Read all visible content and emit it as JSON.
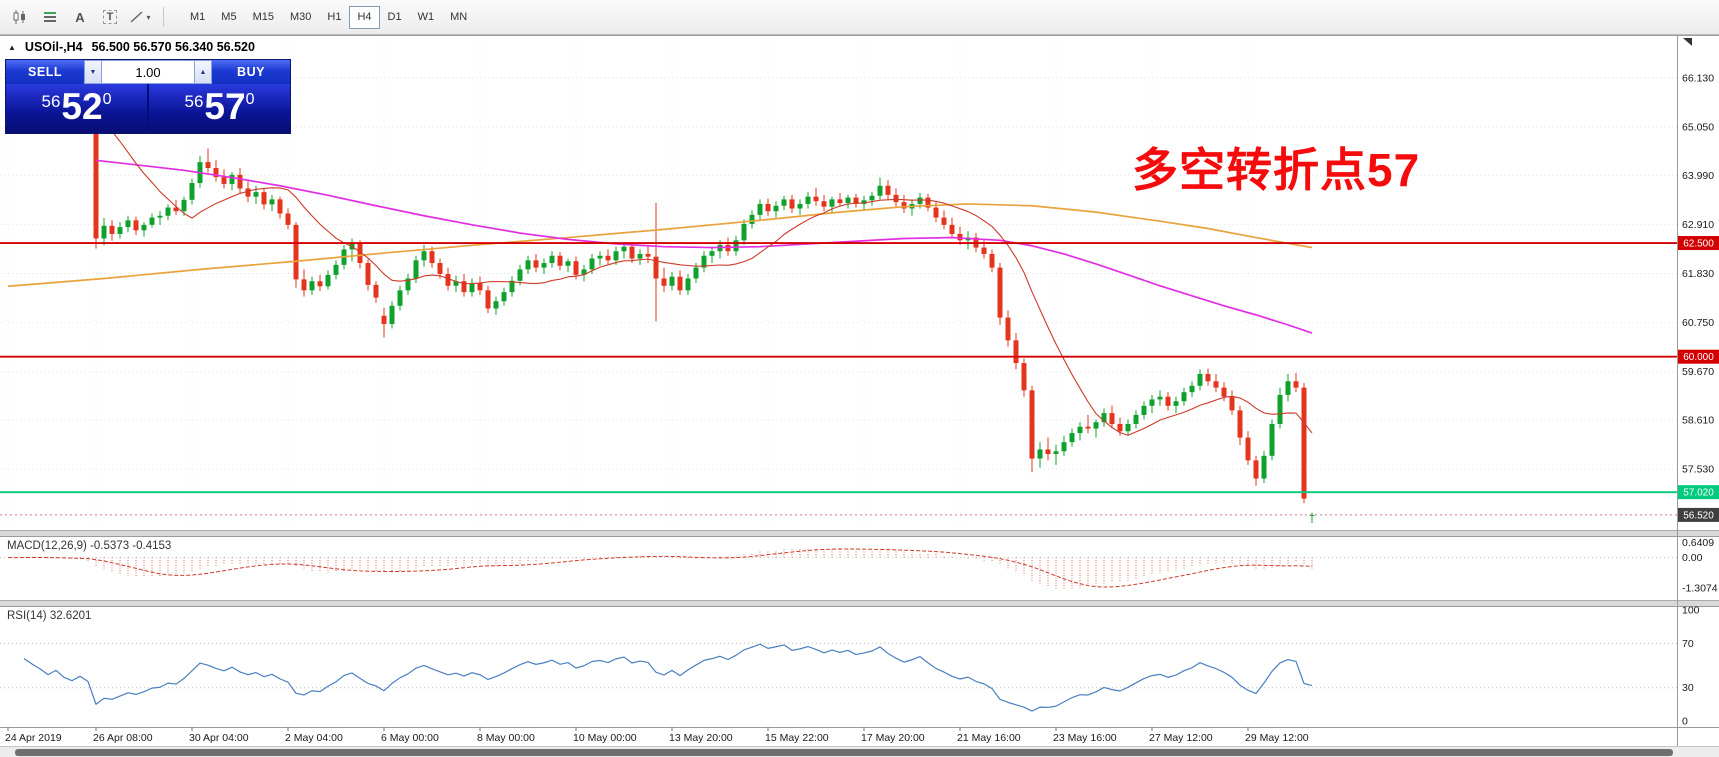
{
  "toolbar": {
    "tool_icons": [
      "candlestick-chart",
      "indicator-lines",
      "label-tool-a",
      "text-tool-t",
      "draw-tools"
    ],
    "icon_a": "A",
    "icon_t": "T",
    "draw_caret": "▾",
    "timeframes": [
      "M1",
      "M5",
      "M15",
      "M30",
      "H1",
      "H4",
      "D1",
      "W1",
      "MN"
    ],
    "active_timeframe": "H4"
  },
  "chart": {
    "window_marker": "▲",
    "symbol_period": "USOil-,H4",
    "ohlc": "56.500 56.570 56.340 56.520"
  },
  "trade_panel": {
    "sell_label": "SELL",
    "buy_label": "BUY",
    "volume": "1.00",
    "spin_down": "▼",
    "spin_up": "▲",
    "sell_price": {
      "small": "56",
      "big": "52",
      "sup": "0"
    },
    "buy_price": {
      "small": "56",
      "big": "57",
      "sup": "0"
    }
  },
  "annotation": {
    "text": "多空转折点57",
    "color": "#f50b0b"
  },
  "colors": {
    "up": "#0fa12e",
    "down": "#e5341d",
    "ma_orange": "#e8a33c",
    "ma_magenta": "#e22ee2",
    "ma_fast": "#cc3a28",
    "level_red": "#d40000",
    "level_green": "#00ca7d",
    "last_price_bg": "#404040",
    "macd": "#e06a5a",
    "macd_signal": "#d03a2a",
    "rsi": "#4a7fc1"
  },
  "chart_data": {
    "type": "candlestick",
    "symbol": "USOil",
    "timeframe": "H4",
    "price_axis_ticks": [
      "66.130",
      "65.050",
      "63.990",
      "62.910",
      "61.830",
      "60.750",
      "59.670",
      "58.610",
      "57.530"
    ],
    "time_ticks": [
      {
        "i": 0,
        "label": "24 Apr 2019"
      },
      {
        "i": 11,
        "label": "26 Apr 08:00"
      },
      {
        "i": 23,
        "label": "30 Apr 04:00"
      },
      {
        "i": 35,
        "label": "2 May 04:00"
      },
      {
        "i": 47,
        "label": "6 May 00:00"
      },
      {
        "i": 59,
        "label": "8 May 00:00"
      },
      {
        "i": 71,
        "label": "10 May 00:00"
      },
      {
        "i": 83,
        "label": "13 May 20:00"
      },
      {
        "i": 95,
        "label": "15 May 22:00"
      },
      {
        "i": 107,
        "label": "17 May 20:00"
      },
      {
        "i": 119,
        "label": "21 May 16:00"
      },
      {
        "i": 131,
        "label": "23 May 16:00"
      },
      {
        "i": 143,
        "label": "27 May 12:00"
      },
      {
        "i": 155,
        "label": "29 May 12:00"
      }
    ],
    "candles": [
      [
        66.05,
        66.18,
        65.8,
        65.9
      ],
      [
        65.9,
        66.0,
        65.62,
        65.75
      ],
      [
        65.75,
        66.28,
        65.7,
        66.1
      ],
      [
        66.1,
        66.22,
        65.85,
        65.95
      ],
      [
        65.95,
        66.05,
        65.68,
        65.8
      ],
      [
        65.8,
        65.92,
        65.5,
        65.6
      ],
      [
        65.6,
        65.85,
        65.52,
        65.72
      ],
      [
        65.72,
        65.8,
        65.38,
        65.45
      ],
      [
        65.45,
        65.58,
        65.2,
        65.3
      ],
      [
        65.3,
        65.52,
        65.22,
        65.42
      ],
      [
        65.42,
        65.5,
        65.08,
        65.18
      ],
      [
        65.18,
        65.24,
        62.38,
        62.6
      ],
      [
        62.6,
        63.05,
        62.45,
        62.88
      ],
      [
        62.88,
        63.0,
        62.55,
        62.7
      ],
      [
        62.7,
        62.96,
        62.6,
        62.85
      ],
      [
        62.85,
        63.1,
        62.74,
        63.0
      ],
      [
        63.0,
        63.08,
        62.68,
        62.78
      ],
      [
        62.78,
        62.96,
        62.64,
        62.9
      ],
      [
        62.9,
        63.15,
        62.84,
        63.06
      ],
      [
        63.06,
        63.2,
        62.9,
        63.1
      ],
      [
        63.1,
        63.35,
        63.0,
        63.28
      ],
      [
        63.28,
        63.45,
        63.12,
        63.2
      ],
      [
        63.2,
        63.52,
        63.1,
        63.45
      ],
      [
        63.45,
        63.92,
        63.35,
        63.82
      ],
      [
        63.82,
        64.42,
        63.72,
        64.28
      ],
      [
        64.28,
        64.58,
        64.05,
        64.15
      ],
      [
        64.15,
        64.32,
        63.85,
        63.95
      ],
      [
        63.95,
        64.12,
        63.7,
        63.8
      ],
      [
        63.8,
        64.06,
        63.66,
        64.0
      ],
      [
        64.0,
        64.15,
        63.58,
        63.7
      ],
      [
        63.7,
        63.86,
        63.4,
        63.52
      ],
      [
        63.52,
        63.76,
        63.36,
        63.62
      ],
      [
        63.62,
        63.7,
        63.24,
        63.35
      ],
      [
        63.35,
        63.56,
        63.2,
        63.46
      ],
      [
        63.46,
        63.52,
        63.04,
        63.15
      ],
      [
        63.15,
        63.26,
        62.8,
        62.9
      ],
      [
        62.9,
        62.96,
        61.52,
        61.7
      ],
      [
        61.7,
        61.92,
        61.32,
        61.46
      ],
      [
        61.46,
        61.76,
        61.36,
        61.66
      ],
      [
        61.66,
        61.8,
        61.44,
        61.55
      ],
      [
        61.55,
        61.9,
        61.48,
        61.8
      ],
      [
        61.8,
        62.12,
        61.7,
        62.02
      ],
      [
        62.02,
        62.46,
        61.92,
        62.36
      ],
      [
        62.36,
        62.6,
        62.1,
        62.5
      ],
      [
        62.5,
        62.56,
        61.94,
        62.06
      ],
      [
        62.06,
        62.14,
        61.46,
        61.58
      ],
      [
        61.58,
        61.66,
        61.18,
        61.3
      ],
      [
        60.9,
        61.08,
        60.42,
        60.72
      ],
      [
        60.72,
        61.22,
        60.62,
        61.12
      ],
      [
        61.12,
        61.56,
        61.02,
        61.46
      ],
      [
        61.46,
        61.82,
        61.36,
        61.72
      ],
      [
        61.72,
        62.22,
        61.62,
        62.12
      ],
      [
        62.12,
        62.46,
        61.98,
        62.32
      ],
      [
        62.32,
        62.42,
        61.96,
        62.06
      ],
      [
        62.06,
        62.16,
        61.72,
        61.82
      ],
      [
        61.82,
        61.96,
        61.46,
        61.56
      ],
      [
        61.56,
        61.78,
        61.42,
        61.66
      ],
      [
        61.66,
        61.82,
        61.32,
        61.42
      ],
      [
        61.42,
        61.72,
        61.32,
        61.62
      ],
      [
        61.62,
        61.76,
        61.36,
        61.46
      ],
      [
        61.46,
        61.56,
        60.96,
        61.06
      ],
      [
        61.06,
        61.32,
        60.92,
        61.22
      ],
      [
        61.22,
        61.52,
        61.12,
        61.42
      ],
      [
        61.42,
        61.77,
        61.32,
        61.67
      ],
      [
        61.67,
        62.02,
        61.57,
        61.92
      ],
      [
        61.92,
        62.22,
        61.82,
        62.12
      ],
      [
        62.12,
        62.26,
        61.86,
        61.96
      ],
      [
        61.96,
        62.16,
        61.82,
        62.06
      ],
      [
        62.06,
        62.32,
        61.96,
        62.22
      ],
      [
        62.22,
        62.3,
        61.9,
        62.0
      ],
      [
        62.0,
        62.16,
        61.86,
        62.1
      ],
      [
        62.1,
        62.2,
        61.7,
        61.8
      ],
      [
        61.8,
        62.02,
        61.66,
        61.92
      ],
      [
        61.92,
        62.26,
        61.82,
        62.16
      ],
      [
        62.16,
        62.32,
        62.0,
        62.22
      ],
      [
        62.22,
        62.36,
        62.04,
        62.12
      ],
      [
        62.12,
        62.42,
        62.02,
        62.32
      ],
      [
        62.32,
        62.52,
        62.16,
        62.42
      ],
      [
        62.42,
        62.48,
        62.06,
        62.16
      ],
      [
        62.16,
        62.36,
        62.02,
        62.26
      ],
      [
        62.26,
        62.42,
        62.06,
        62.2
      ],
      [
        62.2,
        63.38,
        60.78,
        61.72
      ],
      [
        61.72,
        61.96,
        61.42,
        61.56
      ],
      [
        61.56,
        61.86,
        61.46,
        61.76
      ],
      [
        61.76,
        61.9,
        61.36,
        61.46
      ],
      [
        61.46,
        61.82,
        61.36,
        61.72
      ],
      [
        61.72,
        62.06,
        61.62,
        61.96
      ],
      [
        61.96,
        62.32,
        61.86,
        62.22
      ],
      [
        62.22,
        62.42,
        62.06,
        62.32
      ],
      [
        62.32,
        62.56,
        62.16,
        62.46
      ],
      [
        62.46,
        62.62,
        62.22,
        62.32
      ],
      [
        62.32,
        62.66,
        62.22,
        62.56
      ],
      [
        62.56,
        63.02,
        62.46,
        62.92
      ],
      [
        62.92,
        63.22,
        62.82,
        63.12
      ],
      [
        63.12,
        63.46,
        63.02,
        63.36
      ],
      [
        63.36,
        63.48,
        63.1,
        63.2
      ],
      [
        63.2,
        63.42,
        63.06,
        63.32
      ],
      [
        63.32,
        63.54,
        63.22,
        63.46
      ],
      [
        63.46,
        63.56,
        63.16,
        63.26
      ],
      [
        63.26,
        63.46,
        63.12,
        63.36
      ],
      [
        63.36,
        63.62,
        63.26,
        63.52
      ],
      [
        63.52,
        63.72,
        63.32,
        63.42
      ],
      [
        63.42,
        63.56,
        63.2,
        63.3
      ],
      [
        63.3,
        63.52,
        63.16,
        63.46
      ],
      [
        63.46,
        63.6,
        63.3,
        63.38
      ],
      [
        63.38,
        63.56,
        63.26,
        63.5
      ],
      [
        63.5,
        63.58,
        63.28,
        63.36
      ],
      [
        63.36,
        63.54,
        63.22,
        63.44
      ],
      [
        63.44,
        63.62,
        63.32,
        63.54
      ],
      [
        63.54,
        63.94,
        63.46,
        63.76
      ],
      [
        63.76,
        63.88,
        63.46,
        63.56
      ],
      [
        63.56,
        63.7,
        63.3,
        63.4
      ],
      [
        63.4,
        63.56,
        63.16,
        63.26
      ],
      [
        63.26,
        63.46,
        63.1,
        63.36
      ],
      [
        63.36,
        63.6,
        63.26,
        63.5
      ],
      [
        63.5,
        63.58,
        63.2,
        63.28
      ],
      [
        63.28,
        63.4,
        62.96,
        63.06
      ],
      [
        63.06,
        63.22,
        62.8,
        62.9
      ],
      [
        62.9,
        63.06,
        62.6,
        62.7
      ],
      [
        62.7,
        62.86,
        62.46,
        62.56
      ],
      [
        62.56,
        62.76,
        62.36,
        62.62
      ],
      [
        62.62,
        62.72,
        62.3,
        62.4
      ],
      [
        62.4,
        62.56,
        62.16,
        62.26
      ],
      [
        62.26,
        62.36,
        61.86,
        61.96
      ],
      [
        61.96,
        62.06,
        60.7,
        60.86
      ],
      [
        60.86,
        61.02,
        60.22,
        60.36
      ],
      [
        60.36,
        60.52,
        59.72,
        59.86
      ],
      [
        59.86,
        59.96,
        59.12,
        59.26
      ],
      [
        59.26,
        59.36,
        57.46,
        57.76
      ],
      [
        57.76,
        58.12,
        57.56,
        57.96
      ],
      [
        57.96,
        58.22,
        57.72,
        57.86
      ],
      [
        57.86,
        58.06,
        57.62,
        57.92
      ],
      [
        57.92,
        58.26,
        57.82,
        58.12
      ],
      [
        58.12,
        58.42,
        58.02,
        58.32
      ],
      [
        58.32,
        58.56,
        58.16,
        58.46
      ],
      [
        58.46,
        58.72,
        58.32,
        58.42
      ],
      [
        58.42,
        58.62,
        58.22,
        58.56
      ],
      [
        58.56,
        58.86,
        58.46,
        58.76
      ],
      [
        58.76,
        58.92,
        58.42,
        58.52
      ],
      [
        58.52,
        58.66,
        58.26,
        58.36
      ],
      [
        58.36,
        58.62,
        58.26,
        58.52
      ],
      [
        58.52,
        58.82,
        58.42,
        58.72
      ],
      [
        58.72,
        59.02,
        58.62,
        58.92
      ],
      [
        58.92,
        59.16,
        58.76,
        59.06
      ],
      [
        59.06,
        59.26,
        58.92,
        59.12
      ],
      [
        59.12,
        59.22,
        58.82,
        58.92
      ],
      [
        58.92,
        59.12,
        58.76,
        59.02
      ],
      [
        59.02,
        59.32,
        58.92,
        59.22
      ],
      [
        59.22,
        59.46,
        59.12,
        59.36
      ],
      [
        59.36,
        59.72,
        59.26,
        59.62
      ],
      [
        59.62,
        59.74,
        59.36,
        59.46
      ],
      [
        59.46,
        59.62,
        59.22,
        59.32
      ],
      [
        59.32,
        59.44,
        59.02,
        59.12
      ],
      [
        59.12,
        59.26,
        58.72,
        58.82
      ],
      [
        58.82,
        58.92,
        58.06,
        58.22
      ],
      [
        58.22,
        58.36,
        57.62,
        57.72
      ],
      [
        57.72,
        57.82,
        57.16,
        57.32
      ],
      [
        57.32,
        57.92,
        57.22,
        57.82
      ],
      [
        57.82,
        58.62,
        57.72,
        58.52
      ],
      [
        58.52,
        59.32,
        58.42,
        59.16
      ],
      [
        59.16,
        59.62,
        59.02,
        59.46
      ],
      [
        59.46,
        59.64,
        59.22,
        59.32
      ],
      [
        59.32,
        59.42,
        56.78,
        56.88
      ],
      [
        56.5,
        56.57,
        56.34,
        56.52
      ]
    ],
    "moving_averages": [
      {
        "name": "ma-slow-orange",
        "points": [
          [
            0,
            61.55
          ],
          [
            12,
            61.72
          ],
          [
            24,
            61.92
          ],
          [
            36,
            62.1
          ],
          [
            47,
            62.28
          ],
          [
            58,
            62.45
          ],
          [
            70,
            62.62
          ],
          [
            82,
            62.8
          ],
          [
            94,
            63.0
          ],
          [
            104,
            63.18
          ],
          [
            112,
            63.3
          ],
          [
            120,
            63.36
          ],
          [
            128,
            63.32
          ],
          [
            136,
            63.18
          ],
          [
            144,
            62.98
          ],
          [
            150,
            62.82
          ],
          [
            156,
            62.62
          ],
          [
            163,
            62.4
          ]
        ]
      },
      {
        "name": "ma-slow-magenta",
        "points": [
          [
            11,
            64.32
          ],
          [
            16,
            64.22
          ],
          [
            22,
            64.1
          ],
          [
            28,
            63.94
          ],
          [
            34,
            63.76
          ],
          [
            40,
            63.55
          ],
          [
            46,
            63.32
          ],
          [
            52,
            63.1
          ],
          [
            58,
            62.9
          ],
          [
            64,
            62.72
          ],
          [
            70,
            62.58
          ],
          [
            76,
            62.48
          ],
          [
            82,
            62.42
          ],
          [
            88,
            62.4
          ],
          [
            94,
            62.42
          ],
          [
            100,
            62.48
          ],
          [
            106,
            62.54
          ],
          [
            112,
            62.6
          ],
          [
            118,
            62.62
          ],
          [
            124,
            62.56
          ],
          [
            128,
            62.44
          ],
          [
            132,
            62.26
          ],
          [
            136,
            62.04
          ],
          [
            140,
            61.8
          ],
          [
            144,
            61.56
          ],
          [
            148,
            61.34
          ],
          [
            152,
            61.12
          ],
          [
            156,
            60.92
          ],
          [
            160,
            60.7
          ],
          [
            163,
            60.52
          ]
        ]
      },
      {
        "name": "ma-fast-red",
        "period": 13
      }
    ],
    "horizontal_levels": [
      {
        "value": 62.5,
        "label": "62.500",
        "type": "resistance",
        "color_key": "level_red"
      },
      {
        "value": 60.0,
        "label": "60.000",
        "type": "support",
        "color_key": "level_red"
      },
      {
        "value": 57.02,
        "label": "57.020",
        "type": "support",
        "color_key": "level_green"
      },
      {
        "value": 56.52,
        "label": "56.520",
        "type": "last-price",
        "color_key": "last_price_bg",
        "dotted": true
      }
    ],
    "indicators": [
      {
        "type": "MACD",
        "label": "MACD(12,26,9) -0.5373 -0.4153",
        "fast": 12,
        "slow": 26,
        "signal": 9,
        "axis_labels": [
          {
            "v": 0.6409,
            "label": "0.6409"
          },
          {
            "v": 0,
            "label": "0.00"
          },
          {
            "v": -1.3074,
            "label": "-1.3074"
          }
        ]
      },
      {
        "type": "RSI",
        "label": "RSI(14) 32.6201",
        "period": 14,
        "levels": [
          70,
          30
        ],
        "axis_labels": [
          {
            "v": 100,
            "label": "100"
          },
          {
            "v": 70,
            "label": "70"
          },
          {
            "v": 30,
            "label": "30"
          },
          {
            "v": 0,
            "label": "0"
          }
        ]
      }
    ]
  }
}
